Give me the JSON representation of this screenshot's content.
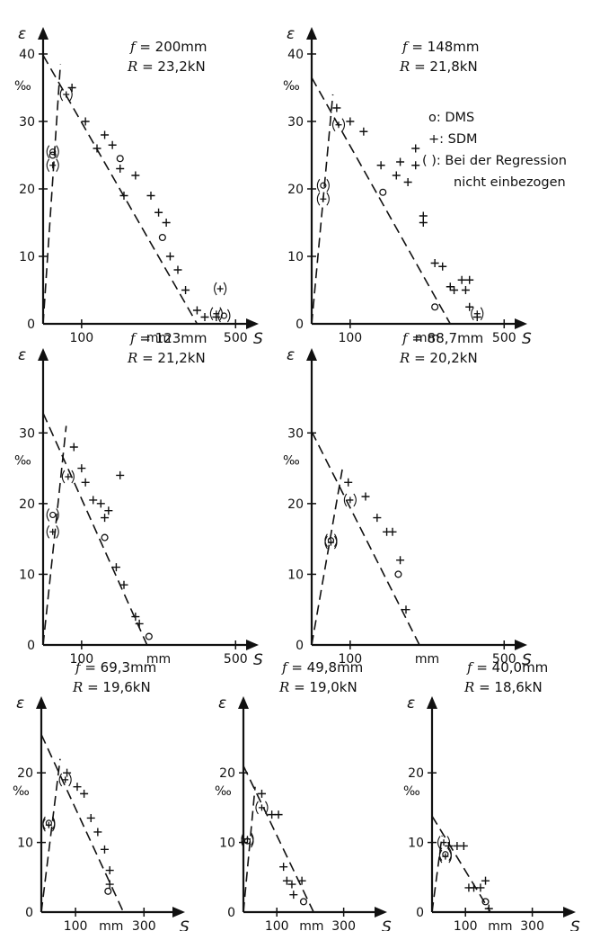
{
  "legend": {
    "dms": "o: DMS",
    "sdm": "+: SDM",
    "excluded_line1": "( ): Bei der Regression",
    "excluded_line2": "nicht einbezogen"
  },
  "chart_data": [
    {
      "type": "scatter",
      "param_f": "200mm",
      "param_R": "23,2kN",
      "ylabel": "ε",
      "yunit": "‰",
      "xlabel": "S",
      "xunit": "mm",
      "xticks": [
        100,
        500
      ],
      "yticks": [
        0,
        10,
        20,
        30,
        40
      ],
      "xlim": [
        0,
        560
      ],
      "ylim": [
        0,
        44
      ],
      "lines": [
        {
          "from": [
            0,
            0
          ],
          "to": [
            45,
            38.5
          ],
          "style": "dashed"
        },
        {
          "from": [
            0,
            39.8
          ],
          "to": [
            400,
            0
          ],
          "style": "dashed"
        }
      ],
      "series": [
        {
          "name": "DMS",
          "marker": "o",
          "points": [
            [
              25,
              25
            ],
            [
              200,
              24.5
            ],
            [
              310,
              12.8
            ]
          ]
        },
        {
          "name": "SDM",
          "marker": "+",
          "points": [
            [
              75,
              35
            ],
            [
              110,
              30
            ],
            [
              140,
              26
            ],
            [
              160,
              28
            ],
            [
              180,
              26.5
            ],
            [
              200,
              23
            ],
            [
              210,
              19
            ],
            [
              240,
              22
            ],
            [
              280,
              19
            ],
            [
              300,
              16.5
            ],
            [
              320,
              15
            ],
            [
              330,
              10
            ],
            [
              350,
              8
            ],
            [
              370,
              5
            ],
            [
              400,
              2
            ],
            [
              420,
              1
            ],
            [
              450,
              1
            ]
          ]
        },
        {
          "name": "excluded",
          "marker": "(+)",
          "points": [
            [
              60,
              34
            ],
            [
              25,
              23.5
            ],
            [
              460,
              5.2
            ],
            [
              450,
              1.5
            ]
          ]
        },
        {
          "name": "excluded",
          "marker": "(o)",
          "points": [
            [
              25,
              25.5
            ],
            [
              470,
              1.2
            ]
          ]
        }
      ]
    },
    {
      "type": "scatter",
      "param_f": "148mm",
      "param_R": "21,8kN",
      "ylabel": "ε",
      "yunit": "‰",
      "xlabel": "S",
      "xunit": "mm",
      "xticks": [
        100,
        500
      ],
      "yticks": [
        0,
        10,
        20,
        30,
        40
      ],
      "xlim": [
        0,
        560
      ],
      "ylim": [
        0,
        44
      ],
      "lines": [
        {
          "from": [
            0,
            0
          ],
          "to": [
            55,
            34
          ],
          "style": "dashed"
        },
        {
          "from": [
            0,
            36.5
          ],
          "to": [
            360,
            0
          ],
          "style": "dashed"
        }
      ],
      "series": [
        {
          "name": "DMS",
          "marker": "o",
          "points": [
            [
              185,
              19.5
            ],
            [
              320,
              2.5
            ]
          ]
        },
        {
          "name": "SDM",
          "marker": "+",
          "points": [
            [
              65,
              32
            ],
            [
              100,
              30
            ],
            [
              135,
              28.5
            ],
            [
              180,
              23.5
            ],
            [
              220,
              22
            ],
            [
              230,
              24
            ],
            [
              250,
              21
            ],
            [
              270,
              23.5
            ],
            [
              270,
              26
            ],
            [
              290,
              16
            ],
            [
              290,
              15
            ],
            [
              320,
              9
            ],
            [
              340,
              8.5
            ],
            [
              360,
              5.5
            ],
            [
              370,
              5
            ],
            [
              390,
              6.5
            ],
            [
              400,
              5
            ],
            [
              410,
              6.5
            ],
            [
              410,
              2.5
            ],
            [
              430,
              1
            ]
          ]
        },
        {
          "name": "excluded",
          "marker": "(+)",
          "points": [
            [
              70,
              29.5
            ],
            [
              30,
              18.5
            ],
            [
              430,
              1.5
            ]
          ]
        },
        {
          "name": "excluded",
          "marker": "(o)",
          "points": [
            [
              30,
              20.5
            ]
          ]
        }
      ]
    },
    {
      "type": "scatter",
      "param_f": "123mm",
      "param_R": "21,2kN",
      "ylabel": "ε",
      "yunit": "‰",
      "xlabel": "S",
      "xunit": "mm",
      "xticks": [
        100,
        500
      ],
      "yticks": [
        0,
        10,
        20,
        30
      ],
      "xlim": [
        0,
        560
      ],
      "ylim": [
        0,
        42
      ],
      "lines": [
        {
          "from": [
            0,
            0
          ],
          "to": [
            60,
            31
          ],
          "style": "dashed"
        },
        {
          "from": [
            0,
            32.8
          ],
          "to": [
            270,
            0
          ],
          "style": "dashed"
        }
      ],
      "series": [
        {
          "name": "DMS",
          "marker": "o",
          "points": [
            [
              160,
              15.2
            ],
            [
              275,
              1.2
            ]
          ]
        },
        {
          "name": "SDM",
          "marker": "+",
          "points": [
            [
              80,
              28
            ],
            [
              100,
              25
            ],
            [
              110,
              23
            ],
            [
              130,
              20.5
            ],
            [
              150,
              20
            ],
            [
              160,
              18
            ],
            [
              170,
              19
            ],
            [
              190,
              11
            ],
            [
              200,
              24
            ],
            [
              210,
              8.5
            ],
            [
              240,
              4
            ],
            [
              250,
              3
            ]
          ]
        },
        {
          "name": "excluded",
          "marker": "(+)",
          "points": [
            [
              65,
              23.8
            ],
            [
              25,
              16
            ]
          ]
        },
        {
          "name": "excluded",
          "marker": "(o)",
          "points": [
            [
              25,
              18.4
            ]
          ]
        }
      ]
    },
    {
      "type": "scatter",
      "param_f": "88,7mm",
      "param_R": "20,2kN",
      "ylabel": "ε",
      "yunit": "‰",
      "xlabel": "S",
      "xunit": "mm",
      "xticks": [
        100,
        500
      ],
      "yticks": [
        0,
        10,
        20,
        30
      ],
      "xlim": [
        0,
        560
      ],
      "ylim": [
        0,
        42
      ],
      "lines": [
        {
          "from": [
            0,
            0
          ],
          "to": [
            80,
            25
          ],
          "style": "dashed"
        },
        {
          "from": [
            0,
            30.2
          ],
          "to": [
            280,
            0
          ],
          "style": "dashed"
        }
      ],
      "series": [
        {
          "name": "DMS",
          "marker": "o",
          "points": [
            [
              225,
              10
            ]
          ]
        },
        {
          "name": "SDM",
          "marker": "+",
          "points": [
            [
              95,
              23
            ],
            [
              140,
              21
            ],
            [
              170,
              18
            ],
            [
              195,
              16
            ],
            [
              210,
              16
            ],
            [
              230,
              12
            ],
            [
              245,
              5
            ]
          ]
        },
        {
          "name": "excluded",
          "marker": "(+)",
          "points": [
            [
              100,
              20.5
            ],
            [
              50,
              14.5
            ]
          ]
        },
        {
          "name": "excluded",
          "marker": "(o)",
          "points": [
            [
              50,
              14.8
            ]
          ]
        }
      ]
    },
    {
      "type": "scatter",
      "param_f": "69,3mm",
      "param_R": "19,6kN",
      "ylabel": "ε",
      "yunit": "‰",
      "xlabel": "S",
      "xunit": "mm",
      "xticks": [
        100,
        300
      ],
      "yticks": [
        0,
        10,
        20
      ],
      "xlim": [
        0,
        420
      ],
      "ylim": [
        0,
        31
      ],
      "lines": [
        {
          "from": [
            0,
            0
          ],
          "to": [
            55,
            22
          ],
          "style": "dashed"
        },
        {
          "from": [
            0,
            25.5
          ],
          "to": [
            240,
            0
          ],
          "style": "dashed"
        }
      ],
      "series": [
        {
          "name": "DMS",
          "marker": "o",
          "points": [
            [
              195,
              3
            ]
          ]
        },
        {
          "name": "SDM",
          "marker": "+",
          "points": [
            [
              75,
              20
            ],
            [
              105,
              18
            ],
            [
              125,
              17
            ],
            [
              145,
              13.5
            ],
            [
              165,
              11.5
            ],
            [
              185,
              9
            ],
            [
              200,
              6
            ],
            [
              200,
              4
            ]
          ]
        },
        {
          "name": "excluded",
          "marker": "(+)",
          "points": [
            [
              70,
              19
            ],
            [
              22,
              12.5
            ]
          ]
        },
        {
          "name": "excluded",
          "marker": "(o)",
          "points": [
            [
              22,
              12.8
            ]
          ]
        }
      ]
    },
    {
      "type": "scatter",
      "param_f": "49,8mm",
      "param_R": "19,0kN",
      "ylabel": "ε",
      "yunit": "‰",
      "xlabel": "S",
      "xunit": "mm",
      "xticks": [
        100,
        300
      ],
      "yticks": [
        0,
        10,
        20
      ],
      "xlim": [
        0,
        430
      ],
      "ylim": [
        0,
        31
      ],
      "lines": [
        {
          "from": [
            0,
            0
          ],
          "to": [
            35,
            18
          ],
          "style": "dashed"
        },
        {
          "from": [
            0,
            21
          ],
          "to": [
            210,
            0
          ],
          "style": "dashed"
        }
      ],
      "series": [
        {
          "name": "DMS",
          "marker": "o",
          "points": [
            [
              180,
              1.5
            ]
          ]
        },
        {
          "name": "SDM",
          "marker": "+",
          "points": [
            [
              55,
              17
            ],
            [
              85,
              14
            ],
            [
              105,
              14
            ],
            [
              120,
              6.5
            ],
            [
              130,
              4.5
            ],
            [
              145,
              4
            ],
            [
              175,
              4.5
            ],
            [
              150,
              2.5
            ]
          ]
        },
        {
          "name": "excluded",
          "marker": "(+)",
          "points": [
            [
              55,
              15
            ],
            [
              12,
              10.5
            ]
          ]
        },
        {
          "name": "excluded",
          "marker": "(o)",
          "points": [
            [
              12,
              10.2
            ]
          ]
        }
      ]
    },
    {
      "type": "scatter",
      "param_f": "40,0mm",
      "param_R": "18,6kN",
      "ylabel": "ε",
      "yunit": "‰",
      "xlabel": "S",
      "xunit": "mm",
      "xticks": [
        100,
        300
      ],
      "yticks": [
        0,
        10,
        20
      ],
      "xlim": [
        0,
        430
      ],
      "ylim": [
        0,
        31
      ],
      "lines": [
        {
          "from": [
            0,
            0
          ],
          "to": [
            30,
            11
          ],
          "style": "dashed"
        },
        {
          "from": [
            0,
            13.8
          ],
          "to": [
            175,
            0
          ],
          "style": "dashed"
        }
      ],
      "series": [
        {
          "name": "DMS",
          "marker": "o",
          "points": [
            [
              160,
              1.5
            ]
          ]
        },
        {
          "name": "SDM",
          "marker": "+",
          "points": [
            [
              50,
              9.5
            ],
            [
              75,
              9.5
            ],
            [
              95,
              9.5
            ],
            [
              110,
              3.5
            ],
            [
              125,
              3.5
            ],
            [
              145,
              3.5
            ],
            [
              160,
              4.5
            ],
            [
              170,
              0.5
            ]
          ]
        },
        {
          "name": "excluded",
          "marker": "(+)",
          "points": [
            [
              35,
              10
            ],
            [
              40,
              8
            ]
          ]
        },
        {
          "name": "excluded",
          "marker": "(o)",
          "points": [
            [
              40,
              8.3
            ]
          ]
        }
      ]
    }
  ]
}
